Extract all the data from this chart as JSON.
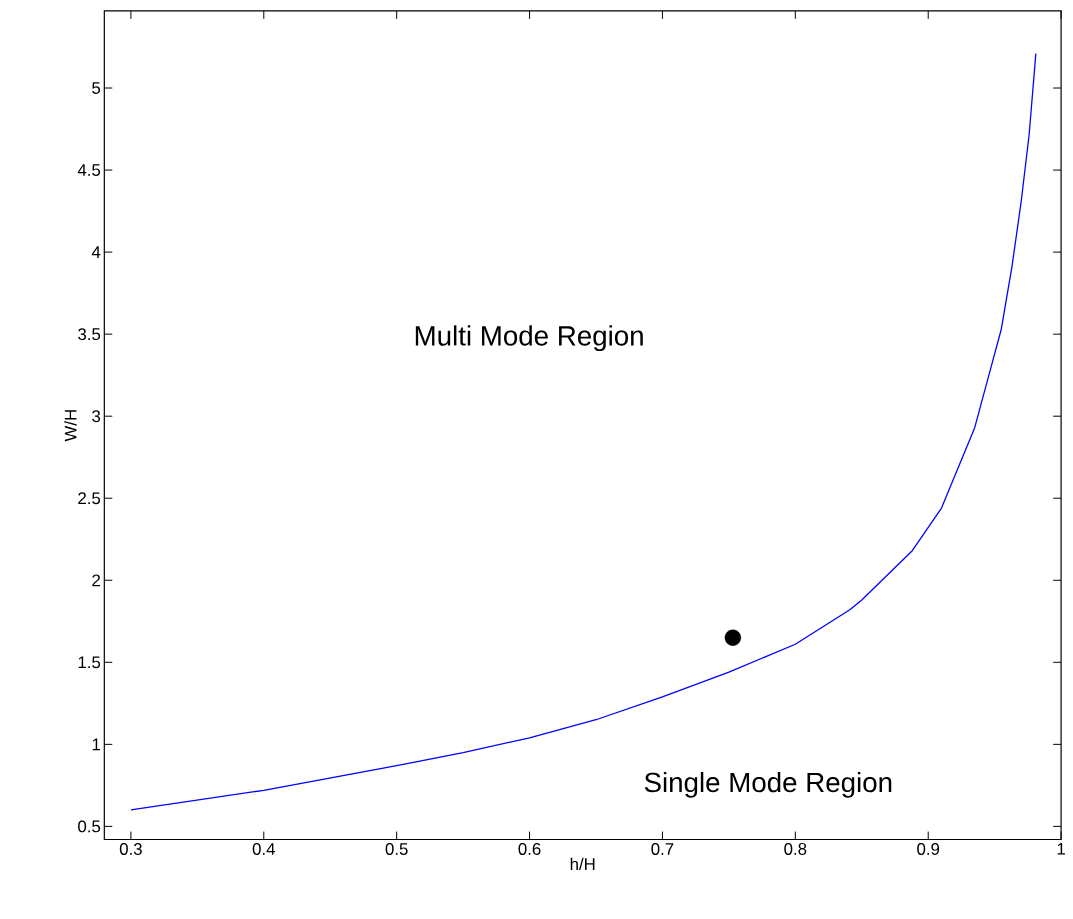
{
  "chart_data": {
    "type": "line",
    "xlabel": "h/H",
    "ylabel": "W/H",
    "xlim": [
      0.28,
      1
    ],
    "ylim": [
      0.42,
      5.47
    ],
    "xticks": [
      0.3,
      0.4,
      0.5,
      0.6,
      0.7,
      0.8,
      0.9,
      1
    ],
    "yticks": [
      0.5,
      1,
      1.5,
      2,
      2.5,
      3,
      3.5,
      4,
      4.5,
      5
    ],
    "grid": false,
    "series": [
      {
        "color": "#0000ff",
        "marker": "none",
        "x": [
          0.3,
          0.4,
          0.5,
          0.55,
          0.6,
          0.65,
          0.7,
          0.75,
          0.8,
          0.841,
          0.85,
          0.888,
          0.91,
          0.935,
          0.945,
          0.955,
          0.963,
          0.97,
          0.976,
          0.981
        ],
        "values": [
          0.6,
          0.72,
          0.87,
          0.95,
          1.04,
          1.15,
          1.29,
          1.44,
          1.61,
          1.82,
          1.88,
          2.18,
          2.44,
          2.93,
          3.23,
          3.53,
          3.91,
          4.31,
          4.72,
          5.21
        ]
      },
      {
        "type": "scatter",
        "color": "#000000",
        "marker": "circle",
        "x": [
          0.753
        ],
        "values": [
          1.65
        ]
      }
    ],
    "annotations": [
      "Multi Mode Region",
      "Single Mode Region"
    ]
  }
}
